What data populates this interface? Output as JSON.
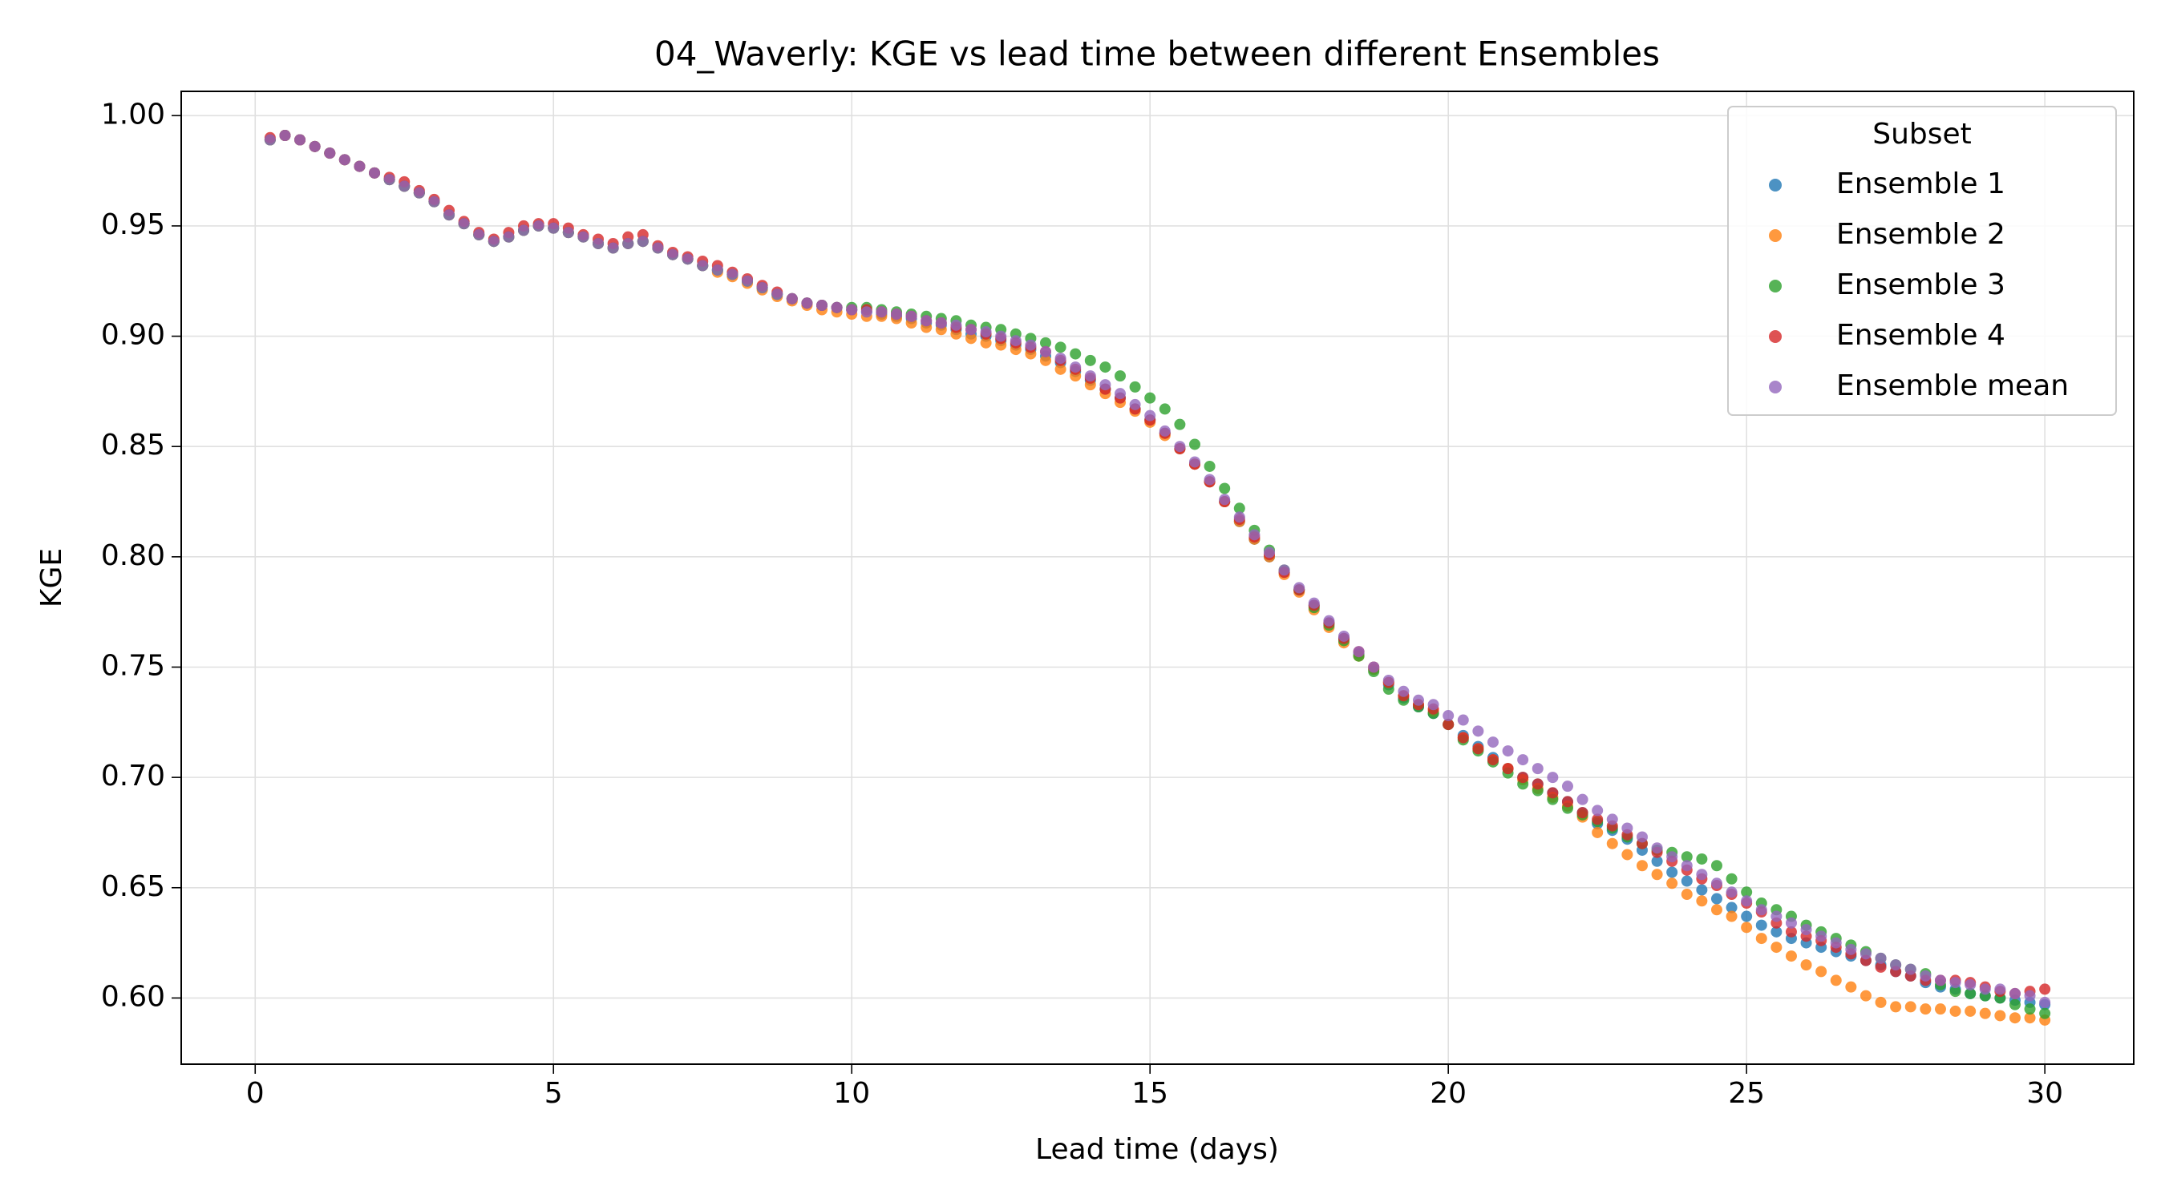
{
  "chart_data": {
    "type": "scatter",
    "title": "04_Waverly: KGE vs lead time between different Ensembles",
    "x_label": "Lead time (days)",
    "y_label": "KGE",
    "legend_title": "Subset",
    "legend_position": "upper right",
    "grid": true,
    "xlim": [
      -1.24,
      31.49
    ],
    "xticks": [
      0,
      5,
      10,
      15,
      20,
      25,
      30
    ],
    "ylim": [
      0.57,
      1.011
    ],
    "yticks": [
      {
        "value": 0.6,
        "label": "0.60"
      },
      {
        "value": 0.65,
        "label": "0.65"
      },
      {
        "value": 0.7,
        "label": "0.70"
      },
      {
        "value": 0.75,
        "label": "0.75"
      },
      {
        "value": 0.8,
        "label": "0.80"
      },
      {
        "value": 0.85,
        "label": "0.85"
      },
      {
        "value": 0.9,
        "label": "0.90"
      },
      {
        "value": 0.95,
        "label": "0.95"
      },
      {
        "value": 1,
        "label": "1.00"
      }
    ],
    "x": [
      0.25,
      0.5,
      0.75,
      1.0,
      1.25,
      1.5,
      1.75,
      2.0,
      2.25,
      2.5,
      2.75,
      3.0,
      3.25,
      3.5,
      3.75,
      4.0,
      4.25,
      4.5,
      4.75,
      5.0,
      5.25,
      5.5,
      5.75,
      6.0,
      6.25,
      6.5,
      6.75,
      7.0,
      7.25,
      7.5,
      7.75,
      8.0,
      8.25,
      8.5,
      8.75,
      9.0,
      9.25,
      9.5,
      9.75,
      10.0,
      10.25,
      10.5,
      10.75,
      11.0,
      11.25,
      11.5,
      11.75,
      12.0,
      12.25,
      12.5,
      12.75,
      13.0,
      13.25,
      13.5,
      13.75,
      14.0,
      14.25,
      14.5,
      14.75,
      15.0,
      15.25,
      15.5,
      15.75,
      16.0,
      16.25,
      16.5,
      16.75,
      17.0,
      17.25,
      17.5,
      17.75,
      18.0,
      18.25,
      18.5,
      18.75,
      19.0,
      19.25,
      19.5,
      19.75,
      20.0,
      20.25,
      20.5,
      20.75,
      21.0,
      21.25,
      21.5,
      21.75,
      22.0,
      22.25,
      22.5,
      22.75,
      23.0,
      23.25,
      23.5,
      23.75,
      24.0,
      24.25,
      24.5,
      24.75,
      25.0,
      25.25,
      25.5,
      25.75,
      26.0,
      26.25,
      26.5,
      26.75,
      27.0,
      27.25,
      27.5,
      27.75,
      28.0,
      28.25,
      28.5,
      28.75,
      29.0,
      29.25,
      29.5,
      29.75,
      30.0
    ],
    "series": [
      {
        "name": "Ensemble 1",
        "color": "#1f77b4",
        "values": [
          0.989,
          0.991,
          0.989,
          0.986,
          0.983,
          0.98,
          0.977,
          0.974,
          0.971,
          0.968,
          0.965,
          0.961,
          0.955,
          0.951,
          0.946,
          0.943,
          0.945,
          0.948,
          0.95,
          0.949,
          0.947,
          0.945,
          0.942,
          0.94,
          0.942,
          0.943,
          0.94,
          0.937,
          0.935,
          0.932,
          0.93,
          0.928,
          0.925,
          0.922,
          0.919,
          0.917,
          0.915,
          0.914,
          0.913,
          0.912,
          0.911,
          0.91,
          0.909,
          0.908,
          0.906,
          0.905,
          0.903,
          0.901,
          0.9,
          0.898,
          0.896,
          0.894,
          0.891,
          0.888,
          0.884,
          0.88,
          0.876,
          0.872,
          0.867,
          0.862,
          0.856,
          0.849,
          0.842,
          0.834,
          0.825,
          0.816,
          0.808,
          0.8,
          0.793,
          0.785,
          0.778,
          0.77,
          0.763,
          0.756,
          0.749,
          0.742,
          0.736,
          0.732,
          0.729,
          0.724,
          0.719,
          0.714,
          0.709,
          0.704,
          0.7,
          0.697,
          0.693,
          0.689,
          0.684,
          0.679,
          0.676,
          0.672,
          0.667,
          0.662,
          0.657,
          0.653,
          0.649,
          0.645,
          0.641,
          0.637,
          0.633,
          0.63,
          0.627,
          0.625,
          0.623,
          0.621,
          0.619,
          0.617,
          0.615,
          0.612,
          0.61,
          0.607,
          0.605,
          0.604,
          0.602,
          0.601,
          0.6,
          0.599,
          0.598,
          0.597
        ]
      },
      {
        "name": "Ensemble 2",
        "color": "#ff7f0e",
        "values": [
          0.989,
          0.991,
          0.989,
          0.986,
          0.983,
          0.98,
          0.977,
          0.974,
          0.971,
          0.968,
          0.965,
          0.961,
          0.955,
          0.951,
          0.946,
          0.943,
          0.945,
          0.948,
          0.95,
          0.949,
          0.947,
          0.945,
          0.942,
          0.94,
          0.942,
          0.943,
          0.94,
          0.937,
          0.935,
          0.932,
          0.929,
          0.927,
          0.924,
          0.921,
          0.918,
          0.916,
          0.914,
          0.912,
          0.911,
          0.91,
          0.909,
          0.909,
          0.908,
          0.906,
          0.904,
          0.903,
          0.901,
          0.899,
          0.897,
          0.896,
          0.894,
          0.892,
          0.889,
          0.885,
          0.882,
          0.878,
          0.874,
          0.87,
          0.866,
          0.861,
          0.855,
          0.849,
          0.842,
          0.834,
          0.825,
          0.816,
          0.808,
          0.8,
          0.792,
          0.784,
          0.776,
          0.768,
          0.761,
          0.755,
          0.749,
          0.743,
          0.737,
          0.733,
          0.73,
          0.724,
          0.718,
          0.713,
          0.708,
          0.704,
          0.699,
          0.695,
          0.691,
          0.687,
          0.682,
          0.675,
          0.67,
          0.665,
          0.66,
          0.656,
          0.652,
          0.647,
          0.644,
          0.64,
          0.637,
          0.632,
          0.627,
          0.623,
          0.619,
          0.615,
          0.612,
          0.608,
          0.605,
          0.601,
          0.598,
          0.596,
          0.596,
          0.595,
          0.595,
          0.594,
          0.594,
          0.593,
          0.592,
          0.591,
          0.591,
          0.59
        ]
      },
      {
        "name": "Ensemble 3",
        "color": "#2ca02c",
        "values": [
          0.989,
          0.991,
          0.989,
          0.986,
          0.983,
          0.98,
          0.977,
          0.974,
          0.971,
          0.968,
          0.965,
          0.961,
          0.955,
          0.951,
          0.946,
          0.943,
          0.945,
          0.948,
          0.95,
          0.949,
          0.947,
          0.945,
          0.942,
          0.94,
          0.942,
          0.943,
          0.94,
          0.937,
          0.935,
          0.932,
          0.93,
          0.928,
          0.925,
          0.922,
          0.919,
          0.917,
          0.915,
          0.914,
          0.913,
          0.913,
          0.913,
          0.912,
          0.911,
          0.91,
          0.909,
          0.908,
          0.907,
          0.905,
          0.904,
          0.903,
          0.901,
          0.899,
          0.897,
          0.895,
          0.892,
          0.889,
          0.886,
          0.882,
          0.877,
          0.872,
          0.867,
          0.86,
          0.851,
          0.841,
          0.831,
          0.822,
          0.812,
          0.803,
          0.794,
          0.785,
          0.777,
          0.769,
          0.762,
          0.755,
          0.748,
          0.74,
          0.735,
          0.732,
          0.729,
          0.724,
          0.717,
          0.712,
          0.707,
          0.702,
          0.697,
          0.694,
          0.69,
          0.686,
          0.683,
          0.68,
          0.677,
          0.673,
          0.67,
          0.667,
          0.666,
          0.664,
          0.663,
          0.66,
          0.654,
          0.648,
          0.643,
          0.64,
          0.637,
          0.633,
          0.63,
          0.627,
          0.624,
          0.621,
          0.618,
          0.615,
          0.613,
          0.611,
          0.606,
          0.603,
          0.602,
          0.601,
          0.6,
          0.597,
          0.595,
          0.593
        ]
      },
      {
        "name": "Ensemble 4",
        "color": "#d62728",
        "values": [
          0.99,
          0.991,
          0.989,
          0.986,
          0.983,
          0.98,
          0.977,
          0.974,
          0.972,
          0.97,
          0.966,
          0.962,
          0.957,
          0.952,
          0.947,
          0.944,
          0.947,
          0.95,
          0.951,
          0.951,
          0.949,
          0.946,
          0.944,
          0.942,
          0.945,
          0.946,
          0.941,
          0.938,
          0.936,
          0.934,
          0.932,
          0.929,
          0.926,
          0.923,
          0.92,
          0.917,
          0.915,
          0.914,
          0.913,
          0.912,
          0.912,
          0.911,
          0.91,
          0.909,
          0.907,
          0.906,
          0.904,
          0.903,
          0.901,
          0.899,
          0.897,
          0.895,
          0.893,
          0.889,
          0.885,
          0.881,
          0.876,
          0.872,
          0.867,
          0.862,
          0.856,
          0.849,
          0.842,
          0.834,
          0.825,
          0.817,
          0.809,
          0.801,
          0.793,
          0.785,
          0.778,
          0.77,
          0.763,
          0.757,
          0.75,
          0.743,
          0.737,
          0.733,
          0.731,
          0.724,
          0.718,
          0.713,
          0.708,
          0.704,
          0.7,
          0.697,
          0.693,
          0.689,
          0.684,
          0.681,
          0.678,
          0.674,
          0.67,
          0.666,
          0.662,
          0.658,
          0.654,
          0.651,
          0.647,
          0.643,
          0.639,
          0.634,
          0.63,
          0.628,
          0.626,
          0.623,
          0.62,
          0.617,
          0.614,
          0.612,
          0.61,
          0.608,
          0.608,
          0.608,
          0.607,
          0.605,
          0.603,
          0.602,
          0.603,
          0.604
        ]
      },
      {
        "name": "Ensemble mean",
        "color": "#9467bd",
        "values": [
          0.989,
          0.991,
          0.989,
          0.986,
          0.983,
          0.98,
          0.977,
          0.974,
          0.971,
          0.968,
          0.965,
          0.961,
          0.955,
          0.951,
          0.946,
          0.943,
          0.945,
          0.948,
          0.95,
          0.949,
          0.947,
          0.945,
          0.942,
          0.94,
          0.942,
          0.943,
          0.94,
          0.937,
          0.935,
          0.932,
          0.93,
          0.928,
          0.925,
          0.922,
          0.919,
          0.917,
          0.915,
          0.914,
          0.913,
          0.912,
          0.911,
          0.911,
          0.91,
          0.909,
          0.907,
          0.906,
          0.905,
          0.903,
          0.902,
          0.9,
          0.898,
          0.896,
          0.893,
          0.89,
          0.886,
          0.882,
          0.878,
          0.874,
          0.869,
          0.864,
          0.857,
          0.85,
          0.843,
          0.835,
          0.826,
          0.818,
          0.81,
          0.802,
          0.794,
          0.786,
          0.779,
          0.771,
          0.764,
          0.757,
          0.75,
          0.744,
          0.739,
          0.735,
          0.733,
          0.728,
          0.726,
          0.721,
          0.716,
          0.712,
          0.708,
          0.704,
          0.7,
          0.696,
          0.69,
          0.685,
          0.681,
          0.677,
          0.673,
          0.668,
          0.664,
          0.66,
          0.656,
          0.652,
          0.648,
          0.644,
          0.64,
          0.637,
          0.634,
          0.631,
          0.628,
          0.625,
          0.622,
          0.62,
          0.618,
          0.615,
          0.613,
          0.61,
          0.608,
          0.607,
          0.606,
          0.604,
          0.604,
          0.602,
          0.601,
          0.598
        ]
      }
    ]
  }
}
